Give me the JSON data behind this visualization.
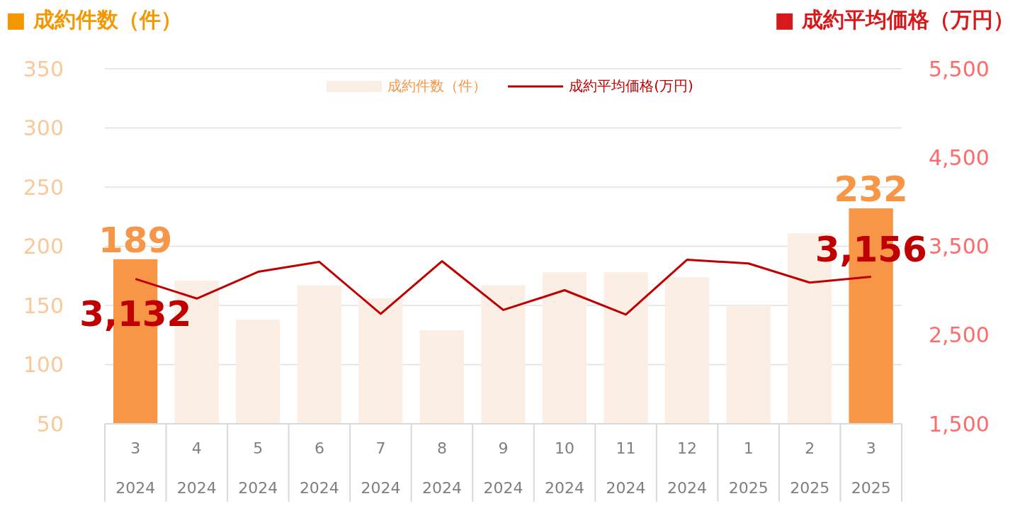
{
  "chart_data": {
    "type": "bar",
    "ylabel": "■ 成約件数（件）",
    "y2label": "■ 成約平均価格（万円）",
    "categories": [
      "3\n2024",
      "4\n2024",
      "5\n2024",
      "6\n2024",
      "7\n2024",
      "8\n2024",
      "9\n2024",
      "10\n2024",
      "11\n2024",
      "12\n2024",
      "1\n2025",
      "2\n2025",
      "3\n2025"
    ],
    "series": [
      {
        "name": "成約件数（件）",
        "color": "#fbeee4",
        "colors": [
          "#f79646",
          "#fbeee4",
          "#fbeee4",
          "#fbeee4",
          "#fbeee4",
          "#fbeee4",
          "#fbeee4",
          "#fbeee4",
          "#fbeee4",
          "#fbeee4",
          "#fbeee4",
          "#fbeee4",
          "#f79646"
        ],
        "values": [
          189,
          171,
          138,
          167,
          156,
          129,
          167,
          178,
          178,
          174,
          150,
          211,
          232
        ],
        "value_labels": [
          "189",
          null,
          null,
          null,
          null,
          null,
          null,
          null,
          null,
          null,
          null,
          null,
          "232"
        ]
      },
      {
        "name": "成約平均価格(万円)",
        "type": "line",
        "axis": "y2",
        "color": "#c00000",
        "values": [
          3132,
          2911,
          3212,
          3324,
          2739,
          3332,
          2782,
          3005,
          2730,
          3349,
          3306,
          3091,
          3156
        ],
        "value_labels": [
          "3,132",
          null,
          null,
          null,
          null,
          null,
          null,
          null,
          null,
          null,
          null,
          null,
          "3,156"
        ]
      }
    ],
    "ylim": [
      50,
      350
    ],
    "yticks": [
      50,
      100,
      150,
      200,
      250,
      300,
      350
    ],
    "y2lim": [
      1500,
      5500
    ],
    "y2ticks": [
      {
        "value": 1500,
        "label": "1,500"
      },
      {
        "value": 2500,
        "label": "2,500"
      },
      {
        "value": 3500,
        "label": "3,500"
      },
      {
        "value": 4500,
        "label": "4,500"
      },
      {
        "value": 5500,
        "label": "5,500"
      }
    ],
    "grid": "y",
    "legend": "top"
  }
}
